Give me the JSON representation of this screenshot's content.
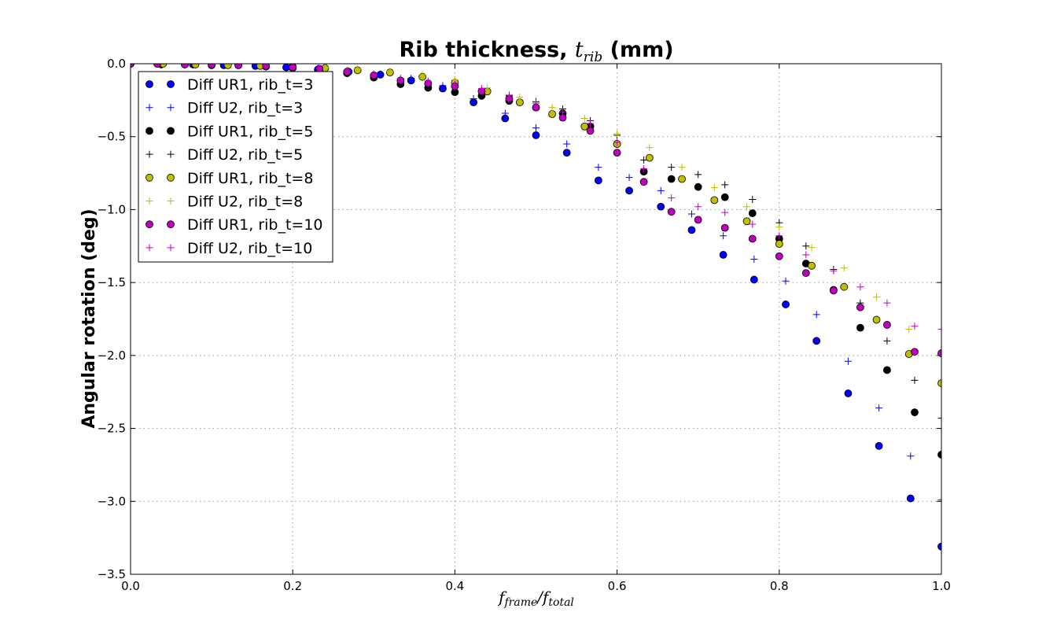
{
  "chart_data": {
    "type": "scatter",
    "title_text": "Rib thickness, ",
    "title_math": "t",
    "title_math_sub": "rib",
    "title_unit": " (mm)",
    "ylabel": "Angular rotation (deg)",
    "xlabel_num": "f",
    "xlabel_num_sub": "frame",
    "xlabel_slash": "/",
    "xlabel_den": "f",
    "xlabel_den_sub": "total",
    "xlim": [
      0.0,
      1.0
    ],
    "ylim": [
      -3.5,
      0.0
    ],
    "xticks": [
      0.0,
      0.2,
      0.4,
      0.6,
      0.8,
      1.0
    ],
    "xtick_labels": [
      "0.0",
      "0.2",
      "0.4",
      "0.6",
      "0.8",
      "1.0"
    ],
    "yticks": [
      0.0,
      -0.5,
      -1.0,
      -1.5,
      -2.0,
      -2.5,
      -3.0,
      -3.5
    ],
    "ytick_labels": [
      "0.0",
      "−0.5",
      "−1.0",
      "−1.5",
      "−2.0",
      "−2.5",
      "−3.0",
      "−3.5"
    ],
    "grid": true,
    "legend_position": "top-left",
    "series": [
      {
        "name": "Diff UR1, rib_t=3",
        "marker": "circle",
        "color": "#0000ff",
        "x": [
          0.0,
          0.038,
          0.077,
          0.115,
          0.154,
          0.192,
          0.231,
          0.269,
          0.308,
          0.346,
          0.385,
          0.423,
          0.462,
          0.5,
          0.538,
          0.577,
          0.615,
          0.654,
          0.692,
          0.731,
          0.769,
          0.808,
          0.846,
          0.885,
          0.923,
          0.962,
          1.0
        ],
        "y": [
          0.0,
          -0.005,
          -0.005,
          -0.01,
          -0.015,
          -0.025,
          -0.04,
          -0.055,
          -0.075,
          -0.115,
          -0.17,
          -0.265,
          -0.375,
          -0.49,
          -0.61,
          -0.8,
          -0.87,
          -0.98,
          -1.14,
          -1.31,
          -1.48,
          -1.65,
          -1.9,
          -2.26,
          -2.62,
          -2.98,
          -3.31
        ]
      },
      {
        "name": "Diff U2, rib_t=3",
        "marker": "plus",
        "color": "#0000ff",
        "x": [
          0.0,
          0.038,
          0.077,
          0.115,
          0.154,
          0.192,
          0.231,
          0.269,
          0.308,
          0.346,
          0.385,
          0.423,
          0.462,
          0.5,
          0.538,
          0.577,
          0.615,
          0.654,
          0.692,
          0.731,
          0.769,
          0.808,
          0.846,
          0.885,
          0.923,
          0.962,
          1.0
        ],
        "y": [
          0.0,
          0.0,
          -0.005,
          -0.005,
          -0.01,
          -0.02,
          -0.03,
          -0.05,
          -0.07,
          -0.1,
          -0.15,
          -0.24,
          -0.34,
          -0.44,
          -0.55,
          -0.71,
          -0.78,
          -0.87,
          -1.03,
          -1.18,
          -1.34,
          -1.49,
          -1.72,
          -2.04,
          -2.36,
          -2.69,
          -2.99
        ]
      },
      {
        "name": "Diff UR1, rib_t=5",
        "marker": "circle",
        "color": "#000000",
        "x": [
          0.0,
          0.033,
          0.067,
          0.1,
          0.133,
          0.167,
          0.2,
          0.233,
          0.267,
          0.3,
          0.333,
          0.367,
          0.4,
          0.433,
          0.467,
          0.5,
          0.533,
          0.567,
          0.6,
          0.633,
          0.667,
          0.7,
          0.733,
          0.767,
          0.8,
          0.833,
          0.867,
          0.9,
          0.933,
          0.967,
          1.0
        ],
        "y": [
          0.0,
          0.0,
          -0.005,
          -0.01,
          -0.01,
          -0.02,
          -0.03,
          -0.04,
          -0.065,
          -0.095,
          -0.14,
          -0.165,
          -0.195,
          -0.22,
          -0.255,
          -0.3,
          -0.34,
          -0.43,
          -0.55,
          -0.74,
          -0.79,
          -0.845,
          -0.915,
          -1.025,
          -1.2,
          -1.37,
          -1.55,
          -1.81,
          -2.1,
          -2.39,
          -2.68
        ]
      },
      {
        "name": "Diff U2, rib_t=5",
        "marker": "plus",
        "color": "#000000",
        "x": [
          0.0,
          0.033,
          0.067,
          0.1,
          0.133,
          0.167,
          0.2,
          0.233,
          0.267,
          0.3,
          0.333,
          0.367,
          0.4,
          0.433,
          0.467,
          0.5,
          0.533,
          0.567,
          0.6,
          0.633,
          0.667,
          0.7,
          0.733,
          0.767,
          0.8,
          0.833,
          0.867,
          0.9,
          0.933,
          0.967,
          1.0
        ],
        "y": [
          0.0,
          0.0,
          0.0,
          -0.005,
          -0.01,
          -0.015,
          -0.025,
          -0.035,
          -0.055,
          -0.08,
          -0.115,
          -0.14,
          -0.165,
          -0.19,
          -0.22,
          -0.26,
          -0.31,
          -0.39,
          -0.49,
          -0.66,
          -0.71,
          -0.76,
          -0.83,
          -0.93,
          -1.09,
          -1.25,
          -1.41,
          -1.64,
          -1.9,
          -2.17,
          -2.43
        ]
      },
      {
        "name": "Diff UR1, rib_t=8",
        "marker": "circle",
        "color": "#bfbf00",
        "x": [
          0.0,
          0.04,
          0.08,
          0.12,
          0.16,
          0.2,
          0.24,
          0.28,
          0.32,
          0.36,
          0.4,
          0.44,
          0.48,
          0.52,
          0.56,
          0.6,
          0.64,
          0.68,
          0.72,
          0.76,
          0.8,
          0.84,
          0.88,
          0.92,
          0.96,
          1.0
        ],
        "y": [
          0.0,
          0.0,
          -0.005,
          -0.01,
          -0.015,
          -0.02,
          -0.03,
          -0.045,
          -0.06,
          -0.09,
          -0.13,
          -0.19,
          -0.265,
          -0.345,
          -0.43,
          -0.55,
          -0.645,
          -0.79,
          -0.935,
          -1.08,
          -1.235,
          -1.385,
          -1.53,
          -1.755,
          -1.99,
          -2.19
        ]
      },
      {
        "name": "Diff U2, rib_t=8",
        "marker": "plus",
        "color": "#bfbf00",
        "x": [
          0.0,
          0.04,
          0.08,
          0.12,
          0.16,
          0.2,
          0.24,
          0.28,
          0.32,
          0.36,
          0.4,
          0.44,
          0.48,
          0.52,
          0.56,
          0.6,
          0.64,
          0.68,
          0.72,
          0.76,
          0.8,
          0.84,
          0.88,
          0.92,
          0.96,
          1.0
        ],
        "y": [
          0.0,
          0.0,
          0.0,
          -0.005,
          -0.01,
          -0.015,
          -0.025,
          -0.035,
          -0.05,
          -0.075,
          -0.11,
          -0.165,
          -0.23,
          -0.3,
          -0.375,
          -0.48,
          -0.575,
          -0.71,
          -0.85,
          -0.98,
          -1.12,
          -1.26,
          -1.4,
          -1.6,
          -1.82,
          -2.0
        ]
      },
      {
        "name": "Diff UR1, rib_t=10",
        "marker": "circle",
        "color": "#bf00bf",
        "x": [
          0.0,
          0.033,
          0.067,
          0.1,
          0.133,
          0.167,
          0.2,
          0.233,
          0.267,
          0.3,
          0.333,
          0.367,
          0.4,
          0.433,
          0.467,
          0.5,
          0.533,
          0.567,
          0.6,
          0.633,
          0.667,
          0.7,
          0.733,
          0.767,
          0.8,
          0.833,
          0.867,
          0.9,
          0.933,
          0.967,
          1.0
        ],
        "y": [
          0.0,
          0.0,
          -0.005,
          -0.005,
          -0.01,
          -0.015,
          -0.025,
          -0.035,
          -0.055,
          -0.08,
          -0.115,
          -0.135,
          -0.155,
          -0.19,
          -0.24,
          -0.3,
          -0.37,
          -0.46,
          -0.61,
          -0.81,
          -1.015,
          -1.07,
          -1.125,
          -1.2,
          -1.32,
          -1.435,
          -1.555,
          -1.67,
          -1.79,
          -1.975,
          -1.985
        ]
      },
      {
        "name": "Diff U2, rib_t=10",
        "marker": "plus",
        "color": "#bf00bf",
        "x": [
          0.0,
          0.033,
          0.067,
          0.1,
          0.133,
          0.167,
          0.2,
          0.233,
          0.267,
          0.3,
          0.333,
          0.367,
          0.4,
          0.433,
          0.467,
          0.5,
          0.533,
          0.567,
          0.6,
          0.633,
          0.667,
          0.7,
          0.733,
          0.767,
          0.8,
          0.833,
          0.867,
          0.9,
          0.933,
          0.967,
          1.0
        ],
        "y": [
          0.0,
          0.0,
          0.0,
          -0.005,
          -0.01,
          -0.015,
          -0.02,
          -0.03,
          -0.045,
          -0.07,
          -0.1,
          -0.12,
          -0.14,
          -0.17,
          -0.215,
          -0.27,
          -0.33,
          -0.41,
          -0.54,
          -0.72,
          -0.92,
          -0.98,
          -1.02,
          -1.1,
          -1.18,
          -1.31,
          -1.42,
          -1.53,
          -1.64,
          -1.8,
          -1.82
        ]
      }
    ]
  }
}
